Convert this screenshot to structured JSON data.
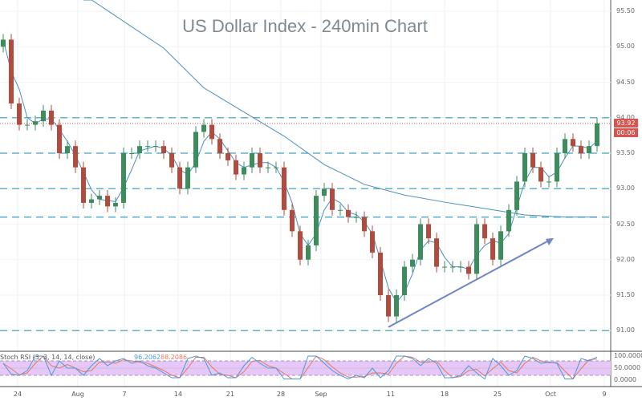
{
  "title": "US Dollar Index - 240min Chart",
  "chart_data": {
    "type": "candlestick",
    "title": "US Dollar Index - 240min Chart",
    "first_open": 95.0,
    "close": [
      95.1,
      94.2,
      93.9,
      93.9,
      93.95,
      94.1,
      93.9,
      93.5,
      93.6,
      93.3,
      92.8,
      92.85,
      92.9,
      92.75,
      92.8,
      93.5,
      93.5,
      93.6,
      93.6,
      93.6,
      93.5,
      93.3,
      93.0,
      93.3,
      93.8,
      93.9,
      93.7,
      93.5,
      93.4,
      93.2,
      93.3,
      93.5,
      93.3,
      93.3,
      93.3,
      92.7,
      92.4,
      92.0,
      92.2,
      92.9,
      93.0,
      92.7,
      92.7,
      92.6,
      92.6,
      92.4,
      92.1,
      91.5,
      91.2,
      91.5,
      91.9,
      92.0,
      92.5,
      92.3,
      91.9,
      91.9,
      91.9,
      91.9,
      91.8,
      92.5,
      92.3,
      92.0,
      92.4,
      92.7,
      93.1,
      93.5,
      93.3,
      93.1,
      93.1,
      93.5,
      93.7,
      93.6,
      93.5,
      93.6,
      93.92
    ],
    "ma_long": [
      [
        11,
        95.66
      ],
      [
        20,
        94.98
      ],
      [
        25,
        94.42
      ],
      [
        30,
        94.08
      ],
      [
        35,
        93.74
      ],
      [
        40,
        93.34
      ],
      [
        45,
        93.06
      ],
      [
        50,
        92.91
      ],
      [
        55,
        92.81
      ],
      [
        60,
        92.72
      ],
      [
        65,
        92.63
      ],
      [
        70,
        92.6
      ],
      [
        74,
        92.6
      ]
    ],
    "horizontal_levels": [
      94.0,
      93.5,
      93.0,
      92.6,
      91.0
    ],
    "trendline": [
      [
        48,
        91.05
      ],
      [
        68,
        92.27
      ]
    ],
    "ylim": [
      90.9,
      95.66
    ],
    "y_ticks": [
      "95.50",
      "95.00",
      "94.50",
      "94.00",
      "93.50",
      "93.00",
      "92.50",
      "92.00",
      "91.50",
      "91.00"
    ],
    "y_tick_values": [
      95.5,
      95.0,
      94.5,
      94.0,
      93.5,
      93.0,
      92.5,
      92.0,
      91.5,
      91.0
    ],
    "x_ticks": [
      "24",
      "Aug",
      "7",
      "14",
      "21",
      "28",
      "Sep",
      "11",
      "18",
      "25",
      "Oct",
      "9"
    ],
    "last_price": "93.92",
    "countdown": "00:06",
    "stoch": {
      "label": "Stoch RSI (3, 3, 14, 14, close)",
      "k_value": "96.2062",
      "d_value": "88.2086",
      "k": [
        70,
        25,
        20,
        40,
        100,
        100,
        20,
        80,
        50,
        50,
        20,
        60,
        90,
        60,
        80,
        90,
        70,
        80,
        60,
        50,
        30,
        10,
        10,
        90,
        100,
        90,
        20,
        30,
        10,
        10,
        60,
        95,
        70,
        50,
        50,
        5,
        5,
        5,
        100,
        100,
        70,
        40,
        20,
        5,
        20,
        10,
        50,
        10,
        40,
        100,
        100,
        90,
        60,
        90,
        70,
        10,
        10,
        20,
        60,
        30,
        5,
        90,
        60,
        20,
        40,
        100,
        90,
        70,
        75,
        70,
        5,
        5,
        90,
        80,
        96
      ],
      "ticks": [
        "100.0000",
        "50.0000",
        "0.0000"
      ],
      "band": [
        20,
        80
      ]
    },
    "colors": {
      "up": "#3d8c5c",
      "down": "#b34a3e",
      "ma_long": "#4a8ebf",
      "ma_short": "#4a8ebf",
      "levels": "#5fb3c9",
      "trend": "#6f86c6",
      "k": "#4a9ad8",
      "d": "#e07a5f",
      "band": "#e6c8f7"
    }
  }
}
